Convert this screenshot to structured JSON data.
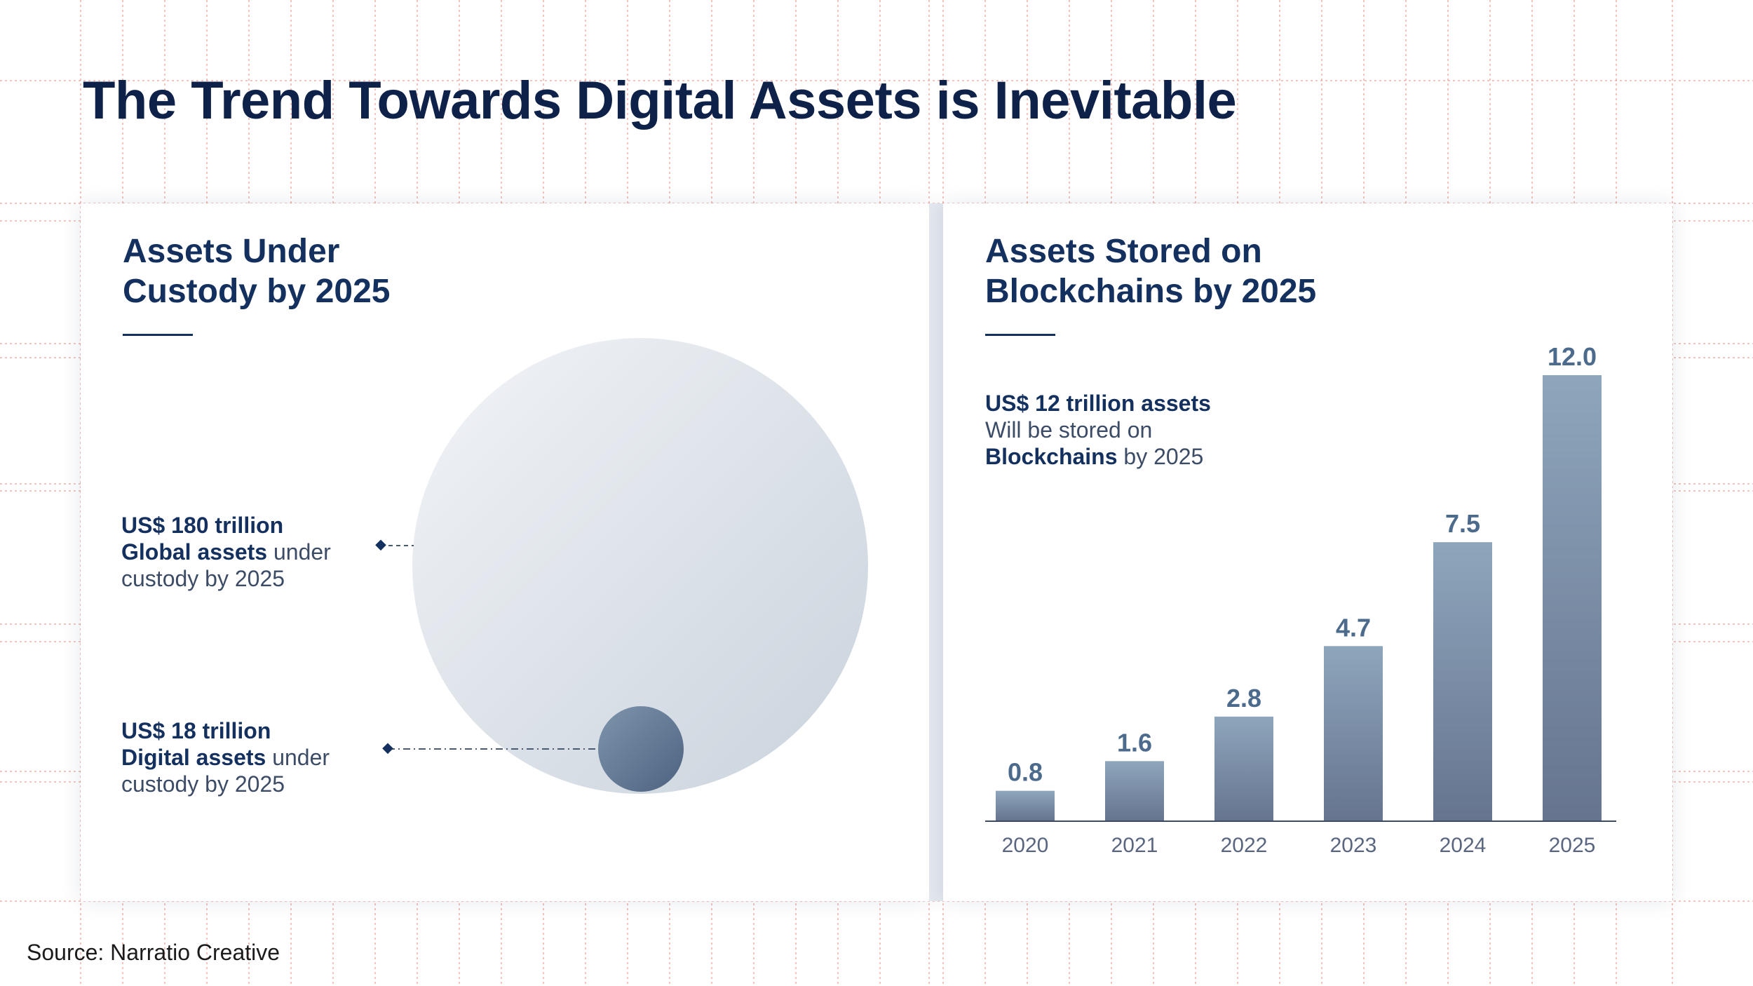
{
  "title": "The Trend Towards Digital Assets is Inevitable",
  "left_panel": {
    "title_line1": "Assets Under",
    "title_line2": "Custody by 2025",
    "global": {
      "value": "US$ 180 trillion",
      "bold": "Global assets",
      "rest": " under",
      "line3": "custody by 2025"
    },
    "digital": {
      "value": "US$ 18 trillion",
      "bold": "Digital assets",
      "rest": " under",
      "line3": "custody by 2025"
    }
  },
  "right_panel": {
    "title_line1": "Assets Stored on",
    "title_line2": "Blockchains by 2025",
    "note_bold": "US$ 12 trillion assets",
    "note_line2": "Will be stored on",
    "note_line3_bold": "Blockchains",
    "note_line3_rest": " by 2025"
  },
  "chart_data": {
    "type": "bar",
    "categories": [
      "2020",
      "2021",
      "2022",
      "2023",
      "2024",
      "2025"
    ],
    "values": [
      0.8,
      1.6,
      2.8,
      4.7,
      7.5,
      12.0
    ],
    "labels": [
      "0.8",
      "1.6",
      "2.8",
      "4.7",
      "7.5",
      "12.0"
    ],
    "ylim": [
      0,
      12
    ],
    "grid": false,
    "colors": {
      "bar_top": "#8ea6bc",
      "bar_bottom": "#66748f",
      "value_label": "#4c6b8c",
      "tick_label": "#5a6680",
      "axis": "#3e4a60"
    }
  },
  "colors": {
    "title": "#0e2148",
    "heading": "#14305e",
    "guides": "#e8857a",
    "circle_big": "#dfe4ea",
    "circle_small": "#5d7390"
  },
  "source": "Source: Narratio Creative"
}
